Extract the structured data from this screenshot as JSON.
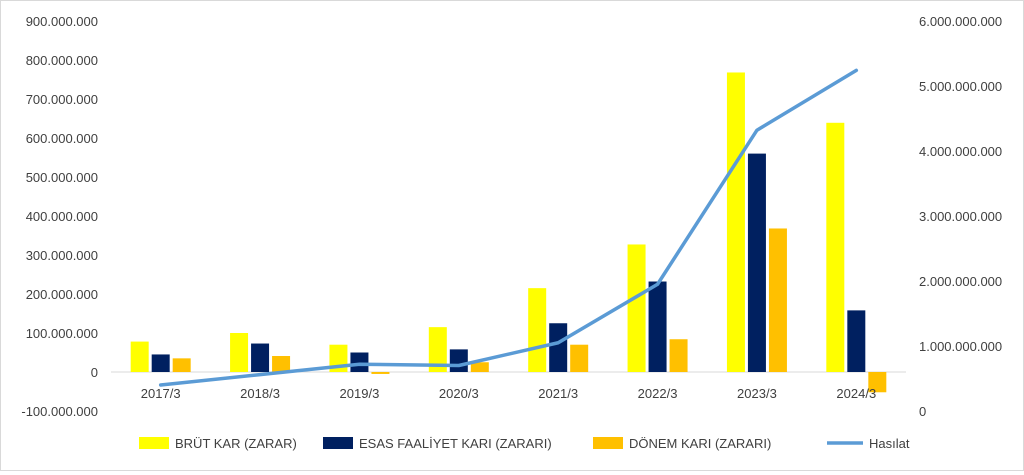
{
  "chart_data": {
    "type": "bar",
    "categories": [
      "2017/3",
      "2018/3",
      "2019/3",
      "2020/3",
      "2021/3",
      "2022/3",
      "2023/3",
      "2024/3"
    ],
    "series": [
      {
        "name": "BRÜT KAR (ZARAR)",
        "type": "bar",
        "axis": "left",
        "color": "#FFFF00",
        "values": [
          78000000,
          100000000,
          70000000,
          115000000,
          215000000,
          327000000,
          768000000,
          639000000
        ]
      },
      {
        "name": "ESAS FAALİYET KARI (ZARARI)",
        "type": "bar",
        "axis": "left",
        "color": "#002060",
        "values": [
          45000000,
          73000000,
          50000000,
          58000000,
          125000000,
          232000000,
          560000000,
          158000000
        ]
      },
      {
        "name": "DÖNEM KARI (ZARARI)",
        "type": "bar",
        "axis": "left",
        "color": "#FFC000",
        "values": [
          35000000,
          41000000,
          -5000000,
          25000000,
          70000000,
          84000000,
          368000000,
          -52000000
        ]
      },
      {
        "name": "Hasılat",
        "type": "line",
        "axis": "right",
        "color": "#5B9BD5",
        "values": [
          400000000,
          560000000,
          720000000,
          700000000,
          1050000000,
          1950000000,
          4320000000,
          5240000000
        ]
      }
    ],
    "ylim_left": [
      -100000000,
      900000000
    ],
    "ylim_right": [
      0,
      6000000000
    ],
    "yticks_left": [
      "900.000.000",
      "800.000.000",
      "700.000.000",
      "600.000.000",
      "500.000.000",
      "400.000.000",
      "300.000.000",
      "200.000.000",
      "100.000.000",
      "0",
      "-100.000.000"
    ],
    "yticks_right": [
      "6.000.000.000",
      "5.000.000.000",
      "4.000.000.000",
      "3.000.000.000",
      "2.000.000.000",
      "1.000.000.000",
      "0"
    ],
    "grid": false,
    "legend_position": "bottom"
  }
}
